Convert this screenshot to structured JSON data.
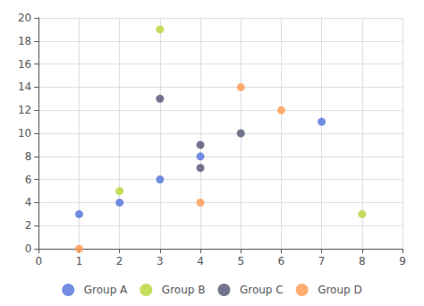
{
  "chart_data": {
    "type": "scatter",
    "series": [
      {
        "name": "Group A",
        "x": [
          1,
          2,
          3,
          4,
          7
        ],
        "values": [
          3,
          4,
          6,
          8,
          11
        ]
      },
      {
        "name": "Group B",
        "x": [
          2,
          3,
          8
        ],
        "values": [
          5,
          19,
          3
        ]
      },
      {
        "name": "Group C",
        "x": [
          3,
          4,
          4,
          5
        ],
        "values": [
          13,
          9,
          7,
          10
        ]
      },
      {
        "name": "Group D",
        "x": [
          1,
          4,
          5,
          6
        ],
        "values": [
          0,
          4,
          14,
          12
        ]
      }
    ],
    "xlim": [
      0,
      9
    ],
    "ylim": [
      0,
      20
    ],
    "xticks": [
      0,
      1,
      2,
      3,
      4,
      5,
      6,
      7,
      8,
      9
    ],
    "yticks": [
      0,
      2,
      4,
      6,
      8,
      10,
      12,
      14,
      16,
      18,
      20
    ],
    "grid": true,
    "legend": "bottom"
  }
}
